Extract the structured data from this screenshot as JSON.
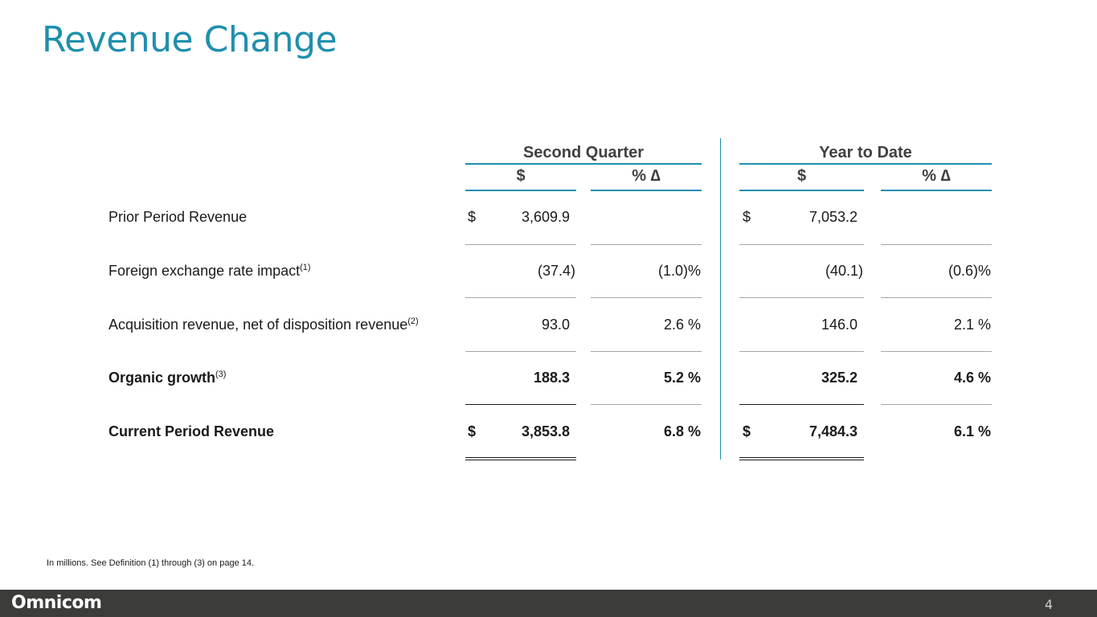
{
  "title": "Revenue Change",
  "groups": {
    "q2": "Second Quarter",
    "ytd": "Year to Date"
  },
  "col_headers": {
    "q2_dollar": "$",
    "q2_pct": "% ∆",
    "ytd_dollar": "$",
    "ytd_pct": "% ∆"
  },
  "rows": [
    {
      "label": "Prior Period Revenue",
      "sup": "",
      "q2_cur": "$",
      "q2_val": "3,609.9",
      "q2_pct": "",
      "ytd_cur": "$",
      "ytd_val": "7,053.2",
      "ytd_pct": ""
    },
    {
      "label": "Foreign exchange rate impact",
      "sup": "(1)",
      "q2_cur": "",
      "q2_val": "(37.4)",
      "q2_pct": "(1.0)%",
      "ytd_cur": "",
      "ytd_val": "(40.1)",
      "ytd_pct": "(0.6)%"
    },
    {
      "label": "Acquisition revenue, net of disposition revenue",
      "sup": "(2)",
      "q2_cur": "",
      "q2_val": "93.0",
      "q2_pct": "2.6 %",
      "ytd_cur": "",
      "ytd_val": "146.0",
      "ytd_pct": "2.1 %"
    },
    {
      "label": "Organic growth",
      "sup": "(3)",
      "q2_cur": "",
      "q2_val": "188.3",
      "q2_pct": "5.2 %",
      "ytd_cur": "",
      "ytd_val": "325.2",
      "ytd_pct": "4.6 %"
    },
    {
      "label": "Current Period Revenue",
      "sup": "",
      "q2_cur": "$",
      "q2_val": "3,853.8",
      "q2_pct": "6.8 %",
      "ytd_cur": "$",
      "ytd_val": "7,484.3",
      "ytd_pct": "6.1 %"
    }
  ],
  "footnote": "In millions.  See Definition (1) through (3) on page 14.",
  "footer": {
    "logo": "Omnicom",
    "page_number": "4"
  }
}
